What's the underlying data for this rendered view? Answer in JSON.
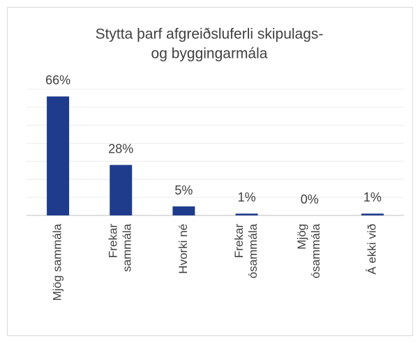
{
  "chart_data": {
    "type": "bar",
    "title": [
      "Stytta þarf afgreiðsluferli skipulags-",
      "og byggingarmála"
    ],
    "categories": [
      [
        "Mjög sammála"
      ],
      [
        "Frekar",
        "sammála"
      ],
      [
        "Hvorki né"
      ],
      [
        "Frekar",
        "ósammála"
      ],
      [
        "Mjög",
        "ósammála"
      ],
      [
        "Á ekki við"
      ]
    ],
    "values": [
      66,
      28,
      5,
      1,
      0,
      1
    ],
    "value_labels": [
      "66%",
      "28%",
      "5%",
      "1%",
      "0%",
      "1%"
    ],
    "color": "#1f3c8c",
    "ylim": [
      0,
      70
    ],
    "yticks": [
      0,
      10,
      20,
      30,
      40,
      50,
      60,
      70
    ],
    "grid": true
  }
}
